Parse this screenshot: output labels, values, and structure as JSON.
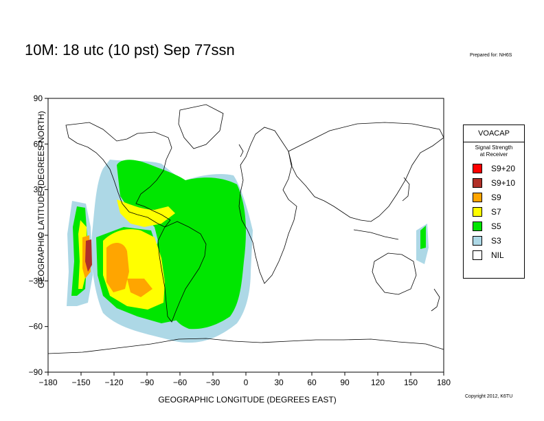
{
  "header": {
    "title": "10M:  18 utc (10 pst) Sep 77ssn",
    "prepared_for": "Prepared for: NH6S"
  },
  "axes": {
    "xlabel": "GEOGRAPHIC LONGITUDE (DEGREES EAST)",
    "ylabel": "GEOGRAPHIC LATITUDE (DEGREES NORTH)",
    "x_ticks": [
      "−180",
      "−150",
      "−120",
      "−90",
      "−60",
      "−30",
      "0",
      "30",
      "60",
      "90",
      "120",
      "150",
      "180"
    ],
    "y_ticks": [
      "90",
      "60",
      "30",
      "0",
      "−30",
      "−60",
      "−90"
    ],
    "x_range": [
      -180,
      180
    ],
    "y_range": [
      -90,
      90
    ]
  },
  "legend": {
    "title": "VOACAP",
    "subtitle_line1": "Signal Strength",
    "subtitle_line2": "at Receiver",
    "items": [
      {
        "label": "S9+20",
        "color": "#ff0000"
      },
      {
        "label": "S9+10",
        "color": "#b03028"
      },
      {
        "label": "S9",
        "color": "#ffa500"
      },
      {
        "label": "S7",
        "color": "#ffff00"
      },
      {
        "label": "S5",
        "color": "#00e600"
      },
      {
        "label": "S3",
        "color": "#add8e6"
      },
      {
        "label": "NIL",
        "color": "#ffffff"
      }
    ]
  },
  "footer": {
    "copyright": "Copyright 2012, K6TU"
  }
}
